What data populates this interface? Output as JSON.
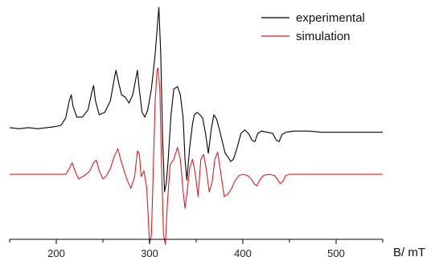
{
  "chart_data": {
    "type": "line",
    "xlabel": "B/ mT",
    "ylabel": "",
    "xlim": [
      150,
      550
    ],
    "ylim": [
      -1,
      1
    ],
    "x_ticks": [
      200,
      300,
      400,
      500
    ],
    "grid": false,
    "legend_position": "top-right",
    "series": [
      {
        "name": "experimental",
        "color": "#000000",
        "points": [
          [
            150,
            -0.03
          ],
          [
            160,
            -0.04
          ],
          [
            170,
            -0.03
          ],
          [
            180,
            -0.04
          ],
          [
            190,
            -0.03
          ],
          [
            200,
            -0.02
          ],
          [
            205,
            -0.01
          ],
          [
            210,
            0.05
          ],
          [
            214,
            0.2
          ],
          [
            216,
            0.25
          ],
          [
            218,
            0.15
          ],
          [
            222,
            0.06
          ],
          [
            228,
            0.06
          ],
          [
            234,
            0.12
          ],
          [
            238,
            0.27
          ],
          [
            240,
            0.33
          ],
          [
            242,
            0.2
          ],
          [
            246,
            0.08
          ],
          [
            252,
            0.1
          ],
          [
            258,
            0.2
          ],
          [
            262,
            0.38
          ],
          [
            264,
            0.46
          ],
          [
            267,
            0.35
          ],
          [
            270,
            0.25
          ],
          [
            274,
            0.23
          ],
          [
            278,
            0.18
          ],
          [
            282,
            0.25
          ],
          [
            286,
            0.42
          ],
          [
            287,
            0.46
          ],
          [
            289,
            0.3
          ],
          [
            292,
            0.1
          ],
          [
            295,
            0.06
          ],
          [
            298,
            0.12
          ],
          [
            302,
            0.3
          ],
          [
            306,
            0.6
          ],
          [
            309,
            0.9
          ],
          [
            310,
            1.0
          ],
          [
            312,
            0.6
          ],
          [
            314,
            -0.1
          ],
          [
            316,
            -0.58
          ],
          [
            318,
            -0.5
          ],
          [
            320,
            -0.3
          ],
          [
            323,
            0.08
          ],
          [
            326,
            0.3
          ],
          [
            330,
            0.32
          ],
          [
            333,
            0.25
          ],
          [
            336,
            0.05
          ],
          [
            338,
            -0.3
          ],
          [
            340,
            -0.48
          ],
          [
            343,
            -0.2
          ],
          [
            346,
            0.0
          ],
          [
            348,
            0.08
          ],
          [
            351,
            0.1
          ],
          [
            354,
            0.08
          ],
          [
            357,
            0.05
          ],
          [
            360,
            -0.08
          ],
          [
            363,
            -0.25
          ],
          [
            366,
            -0.05
          ],
          [
            369,
            0.08
          ],
          [
            372,
            0.04
          ],
          [
            375,
            -0.05
          ],
          [
            378,
            -0.15
          ],
          [
            381,
            -0.25
          ],
          [
            384,
            -0.28
          ],
          [
            387,
            -0.32
          ],
          [
            390,
            -0.3
          ],
          [
            394,
            -0.2
          ],
          [
            398,
            -0.08
          ],
          [
            402,
            -0.05
          ],
          [
            406,
            -0.08
          ],
          [
            410,
            -0.14
          ],
          [
            413,
            -0.15
          ],
          [
            416,
            -0.08
          ],
          [
            420,
            -0.06
          ],
          [
            426,
            -0.07
          ],
          [
            432,
            -0.08
          ],
          [
            436,
            -0.14
          ],
          [
            439,
            -0.15
          ],
          [
            442,
            -0.09
          ],
          [
            446,
            -0.07
          ],
          [
            455,
            -0.06
          ],
          [
            470,
            -0.06
          ],
          [
            485,
            -0.07
          ],
          [
            500,
            -0.07
          ],
          [
            515,
            -0.07
          ],
          [
            530,
            -0.07
          ],
          [
            550,
            -0.07
          ]
        ]
      },
      {
        "name": "simulation",
        "color": "#e41a1c",
        "points": [
          [
            150,
            -0.43
          ],
          [
            200,
            -0.43
          ],
          [
            210,
            -0.43
          ],
          [
            214,
            -0.38
          ],
          [
            217,
            -0.33
          ],
          [
            220,
            -0.4
          ],
          [
            224,
            -0.47
          ],
          [
            228,
            -0.45
          ],
          [
            232,
            -0.43
          ],
          [
            236,
            -0.4
          ],
          [
            240,
            -0.33
          ],
          [
            243,
            -0.31
          ],
          [
            246,
            -0.4
          ],
          [
            250,
            -0.47
          ],
          [
            254,
            -0.44
          ],
          [
            258,
            -0.38
          ],
          [
            262,
            -0.28
          ],
          [
            266,
            -0.21
          ],
          [
            269,
            -0.3
          ],
          [
            272,
            -0.38
          ],
          [
            276,
            -0.48
          ],
          [
            280,
            -0.55
          ],
          [
            284,
            -0.45
          ],
          [
            287,
            -0.23
          ],
          [
            289,
            -0.25
          ],
          [
            291,
            -0.45
          ],
          [
            294,
            -0.4
          ],
          [
            297,
            -0.55
          ],
          [
            300,
            -1.02
          ],
          [
            302,
            -0.95
          ],
          [
            304,
            -0.4
          ],
          [
            306,
            0.2
          ],
          [
            308,
            0.46
          ],
          [
            309,
            0.48
          ],
          [
            311,
            0.3
          ],
          [
            313,
            -0.4
          ],
          [
            315,
            -0.95
          ],
          [
            317,
            -1.03
          ],
          [
            319,
            -0.7
          ],
          [
            322,
            -0.35
          ],
          [
            326,
            -0.3
          ],
          [
            330,
            -0.2
          ],
          [
            333,
            -0.3
          ],
          [
            336,
            -0.58
          ],
          [
            338,
            -0.72
          ],
          [
            340,
            -0.6
          ],
          [
            343,
            -0.38
          ],
          [
            346,
            -0.3
          ],
          [
            349,
            -0.42
          ],
          [
            352,
            -0.62
          ],
          [
            355,
            -0.3
          ],
          [
            358,
            -0.26
          ],
          [
            361,
            -0.4
          ],
          [
            364,
            -0.58
          ],
          [
            367,
            -0.5
          ],
          [
            370,
            -0.3
          ],
          [
            373,
            -0.24
          ],
          [
            376,
            -0.4
          ],
          [
            380,
            -0.62
          ],
          [
            384,
            -0.6
          ],
          [
            388,
            -0.55
          ],
          [
            392,
            -0.48
          ],
          [
            396,
            -0.44
          ],
          [
            400,
            -0.43
          ],
          [
            405,
            -0.44
          ],
          [
            409,
            -0.47
          ],
          [
            412,
            -0.51
          ],
          [
            415,
            -0.53
          ],
          [
            418,
            -0.48
          ],
          [
            422,
            -0.44
          ],
          [
            428,
            -0.43
          ],
          [
            434,
            -0.44
          ],
          [
            437,
            -0.47
          ],
          [
            440,
            -0.51
          ],
          [
            443,
            -0.49
          ],
          [
            446,
            -0.44
          ],
          [
            450,
            -0.43
          ],
          [
            480,
            -0.43
          ],
          [
            520,
            -0.43
          ],
          [
            550,
            -0.43
          ]
        ]
      }
    ]
  }
}
